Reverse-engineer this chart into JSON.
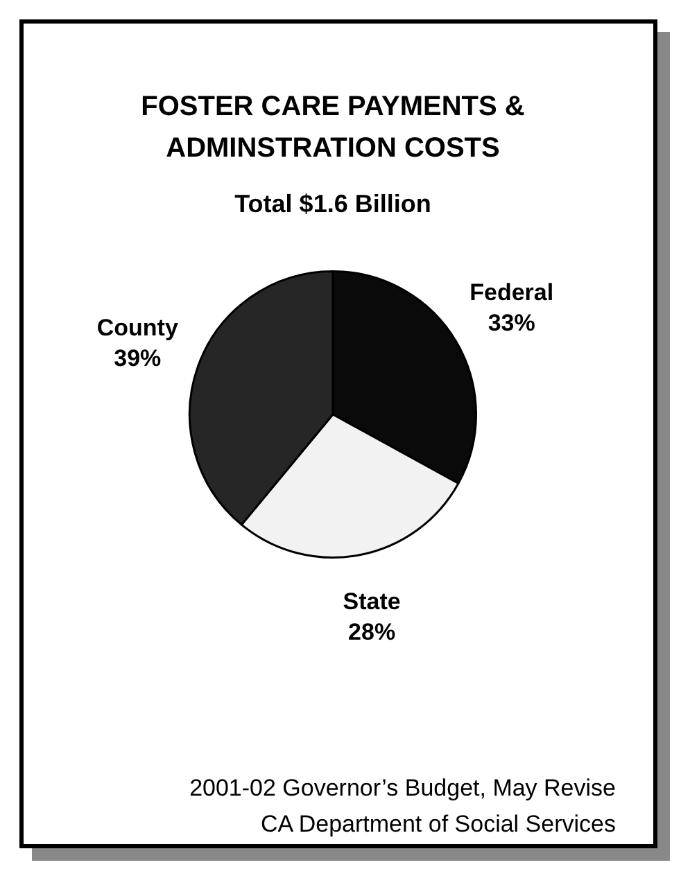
{
  "chart_data": {
    "type": "pie",
    "title": "FOSTER CARE PAYMENTS & ADMINSTRATION COSTS",
    "subtitle": "Total $1.6 Billion",
    "categories": [
      "Federal",
      "State",
      "County"
    ],
    "values": [
      33,
      28,
      39
    ],
    "colors": [
      "#0a0a0a",
      "#f2f2f2",
      "#262626"
    ],
    "value_labels": [
      "33%",
      "28%",
      "39%"
    ],
    "legend": false,
    "annotations": [
      "2001-02 Governor’s Budget, May Revise",
      "CA Department of Social Services"
    ]
  }
}
